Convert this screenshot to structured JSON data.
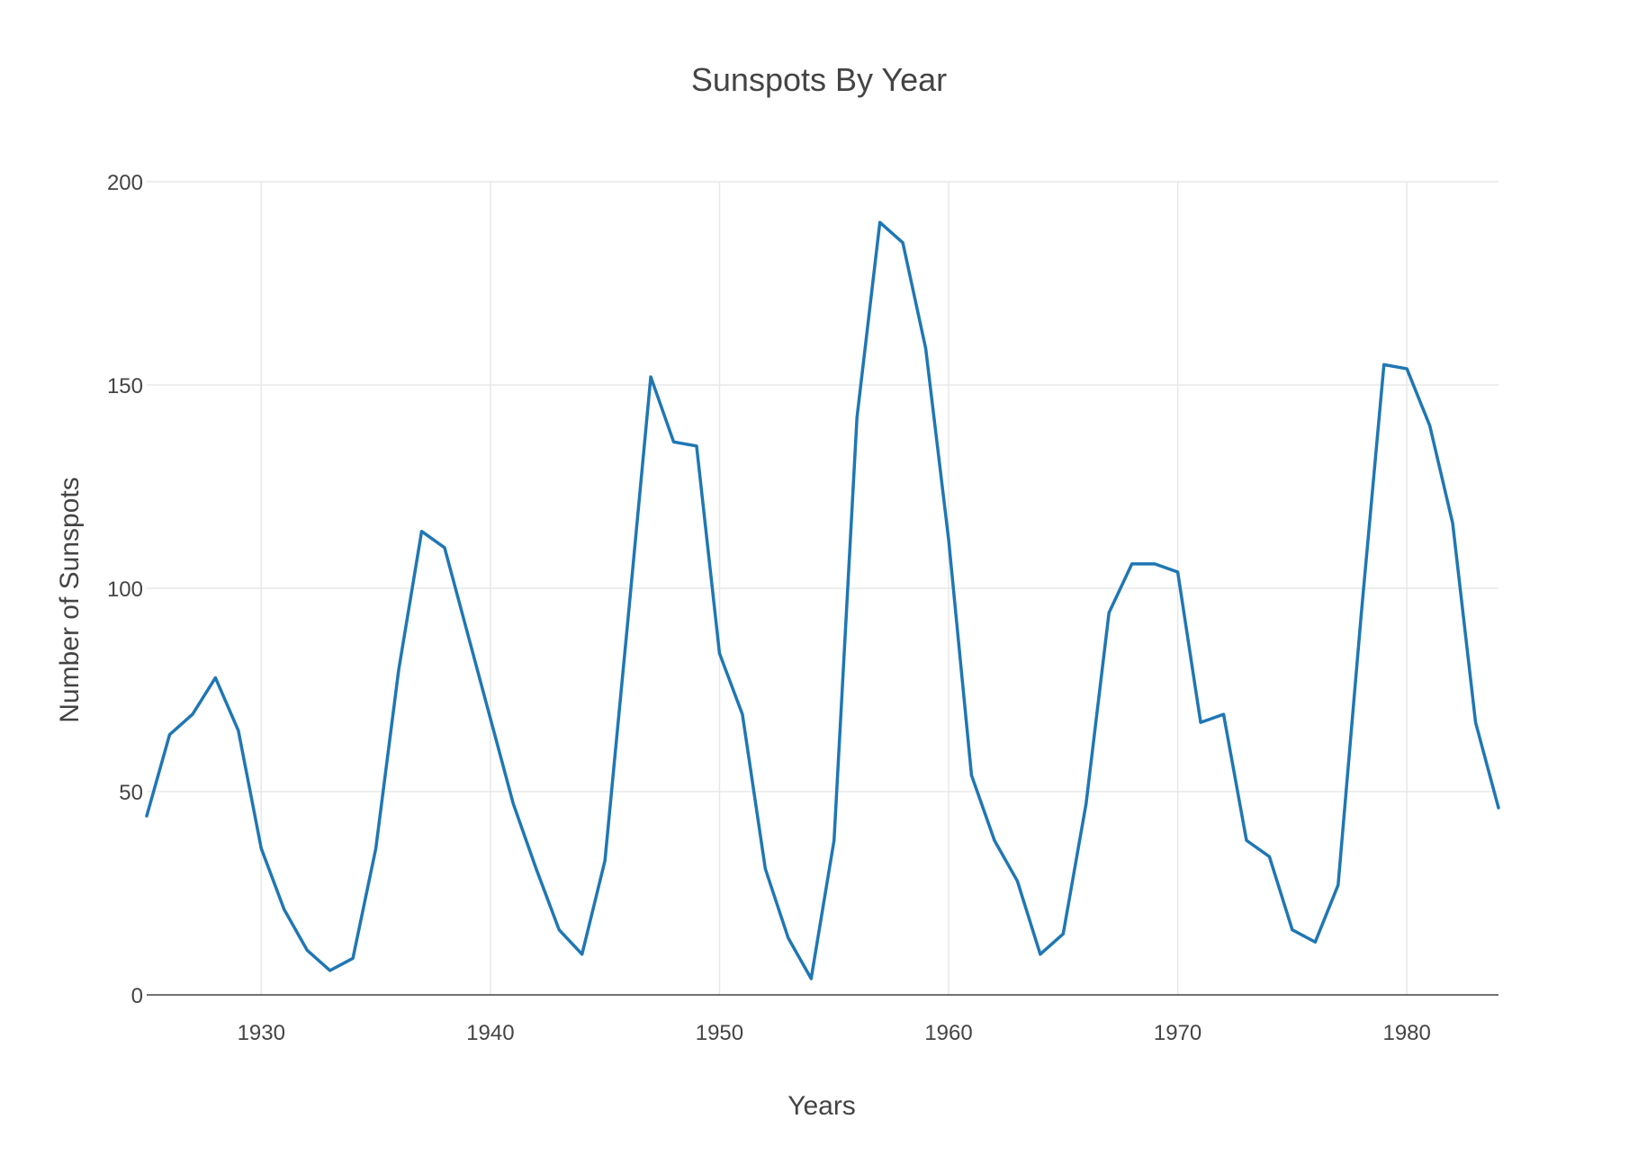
{
  "chart_data": {
    "type": "line",
    "title": "Sunspots By Year",
    "xlabel": "Years",
    "ylabel": "Number of Sunspots",
    "xlim": [
      1925,
      1984
    ],
    "ylim": [
      0,
      200
    ],
    "x_ticks": [
      1930,
      1940,
      1950,
      1960,
      1970,
      1980
    ],
    "y_ticks": [
      0,
      50,
      100,
      150,
      200
    ],
    "grid": true,
    "line_color": "#1f77b4",
    "x": [
      1925,
      1926,
      1927,
      1928,
      1929,
      1930,
      1931,
      1932,
      1933,
      1934,
      1935,
      1936,
      1937,
      1938,
      1939,
      1940,
      1941,
      1942,
      1943,
      1944,
      1945,
      1946,
      1947,
      1948,
      1949,
      1950,
      1951,
      1952,
      1953,
      1954,
      1955,
      1956,
      1957,
      1958,
      1959,
      1960,
      1961,
      1962,
      1963,
      1964,
      1965,
      1966,
      1967,
      1968,
      1969,
      1970,
      1971,
      1972,
      1973,
      1974,
      1975,
      1976,
      1977,
      1978,
      1979,
      1980,
      1981,
      1982,
      1983,
      1984
    ],
    "values": [
      44,
      64,
      69,
      78,
      65,
      36,
      21,
      11,
      6,
      9,
      36,
      80,
      114,
      110,
      89,
      68,
      47,
      31,
      16,
      10,
      33,
      92,
      152,
      136,
      135,
      84,
      69,
      31,
      14,
      4,
      38,
      142,
      190,
      185,
      159,
      112,
      54,
      38,
      28,
      10,
      15,
      47,
      94,
      106,
      106,
      104,
      67,
      69,
      38,
      34,
      16,
      13,
      27,
      93,
      155,
      154,
      140,
      116,
      67,
      46
    ]
  }
}
